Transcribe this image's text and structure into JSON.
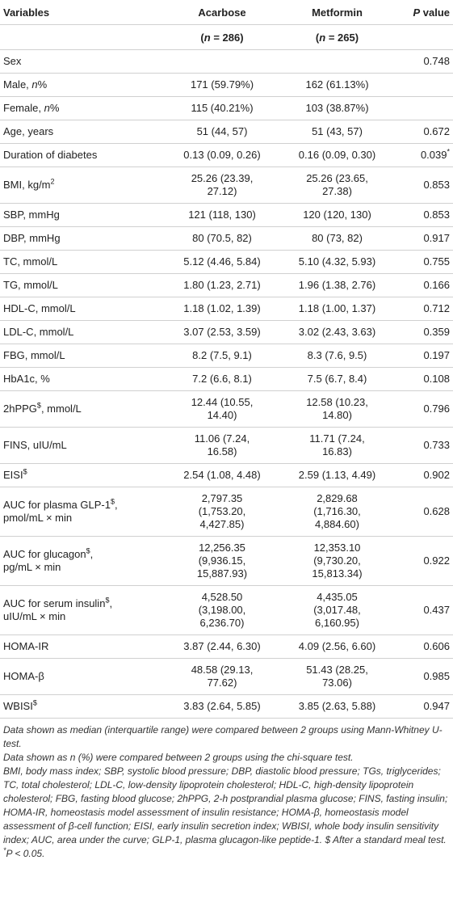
{
  "table": {
    "rows": [
      [
        "Variables",
        "Acarbose",
        "Metformin",
        [
          [
            {
              "i": "P"
            },
            " value"
          ]
        ]
      ],
      [
        null,
        [
          [
            "(",
            {
              "i": "n"
            },
            " = 286)"
          ]
        ],
        [
          [
            "(",
            {
              "i": "n"
            },
            " = 265)"
          ]
        ],
        null
      ],
      [
        "Sex",
        null,
        null,
        "0.748"
      ],
      [
        [
          [
            "Male, ",
            {
              "i": "n"
            },
            "%"
          ]
        ],
        "171 (59.79%)",
        "162 (61.13%)",
        null
      ],
      [
        [
          [
            "Female, ",
            {
              "i": "n"
            },
            "%"
          ]
        ],
        "115 (40.21%)",
        "103 (38.87%)",
        null
      ],
      [
        "Age, years",
        "51 (44, 57)",
        "51 (43, 57)",
        "0.672"
      ],
      [
        "Duration of diabetes",
        "0.13 (0.09, 0.26)",
        "0.16 (0.09, 0.30)",
        [
          [
            "0.039",
            {
              "sup": "*"
            }
          ]
        ]
      ],
      [
        [
          [
            "BMI, kg/m",
            {
              "sup": "2"
            }
          ]
        ],
        [
          "25.26 (23.39,",
          "27.12)"
        ],
        [
          "25.26 (23.65,",
          "27.38)"
        ],
        "0.853"
      ],
      [
        "SBP, mmHg",
        "121 (118, 130)",
        "120 (120, 130)",
        "0.853"
      ],
      [
        "DBP, mmHg",
        "80 (70.5, 82)",
        "80 (73, 82)",
        "0.917"
      ],
      [
        "TC, mmol/L",
        "5.12 (4.46, 5.84)",
        "5.10 (4.32, 5.93)",
        "0.755"
      ],
      [
        "TG, mmol/L",
        "1.80 (1.23, 2.71)",
        "1.96 (1.38, 2.76)",
        "0.166"
      ],
      [
        "HDL-C, mmol/L",
        "1.18 (1.02, 1.39)",
        "1.18 (1.00, 1.37)",
        "0.712"
      ],
      [
        "LDL-C, mmol/L",
        "3.07 (2.53, 3.59)",
        "3.02 (2.43, 3.63)",
        "0.359"
      ],
      [
        "FBG, mmol/L",
        "8.2 (7.5, 9.1)",
        "8.3 (7.6, 9.5)",
        "0.197"
      ],
      [
        "HbA1c, %",
        "7.2 (6.6, 8.1)",
        "7.5 (6.7, 8.4)",
        "0.108"
      ],
      [
        [
          [
            "2hPPG",
            {
              "sup": "$"
            },
            ", mmol/L"
          ]
        ],
        [
          "12.44 (10.55,",
          "14.40)"
        ],
        [
          "12.58 (10.23,",
          "14.80)"
        ],
        "0.796"
      ],
      [
        "FINS, uIU/mL",
        [
          "11.06 (7.24,",
          "16.58)"
        ],
        [
          "11.71 (7.24,",
          "16.83)"
        ],
        "0.733"
      ],
      [
        [
          [
            "EISI",
            {
              "sup": "$"
            }
          ]
        ],
        "2.54 (1.08, 4.48)",
        "2.59 (1.13, 4.49)",
        "0.902"
      ],
      [
        [
          [
            "AUC for plasma GLP-1",
            {
              "sup": "$"
            },
            ","
          ],
          "pmol/mL × min"
        ],
        [
          "2,797.35",
          "(1,753.20,",
          "4,427.85)"
        ],
        [
          "2,829.68",
          "(1,716.30,",
          "4,884.60)"
        ],
        "0.628"
      ],
      [
        [
          [
            "AUC for glucagon",
            {
              "sup": "$"
            },
            ","
          ],
          "pg/mL × min"
        ],
        [
          "12,256.35",
          "(9,936.15,",
          "15,887.93)"
        ],
        [
          "12,353.10",
          "(9,730.20,",
          "15,813.34)"
        ],
        "0.922"
      ],
      [
        [
          [
            "AUC for serum insulin",
            {
              "sup": "$"
            },
            ","
          ],
          "uIU/mL × min"
        ],
        [
          "4,528.50",
          "(3,198.00,",
          "6,236.70)"
        ],
        [
          "4,435.05",
          "(3,017.48,",
          "6,160.95)"
        ],
        "0.437"
      ],
      [
        "HOMA-IR",
        "3.87 (2.44, 6.30)",
        "4.09 (2.56, 6.60)",
        "0.606"
      ],
      [
        "HOMA-β",
        [
          "48.58 (29.13,",
          "77.62)"
        ],
        [
          "51.43 (28.25,",
          "73.06)"
        ],
        "0.985"
      ],
      [
        [
          [
            "WBISI",
            {
              "sup": "$"
            }
          ]
        ],
        "3.83 (2.64, 5.85)",
        "3.85 (2.63, 5.88)",
        "0.947"
      ]
    ]
  },
  "footnotes": [
    "Data shown as median (interquartile range) were compared between 2 groups using Mann-Whitney U-test.",
    "Data shown as n (%) were compared between 2 groups using the chi-square test.",
    "BMI, body mass index; SBP, systolic blood pressure; DBP, diastolic blood pressure; TGs, triglycerides; TC, total cholesterol; LDL-C, low-density lipoprotein cholesterol; HDL-C, high-density lipoprotein cholesterol; FBG, fasting blood glucose; 2hPPG, 2-h postprandial plasma glucose; FINS, fasting insulin; HOMA-IR, homeostasis model assessment of insulin resistance; HOMA-β, homeostasis model assessment of β-cell function; EISI, early insulin secretion index; WBISI, whole body insulin sensitivity index; AUC, area under the curve; GLP-1, plasma glucagon-like peptide-1. $ After a standard meal test.",
    [
      {
        "sup": "*"
      },
      "P < 0.05."
    ]
  ]
}
